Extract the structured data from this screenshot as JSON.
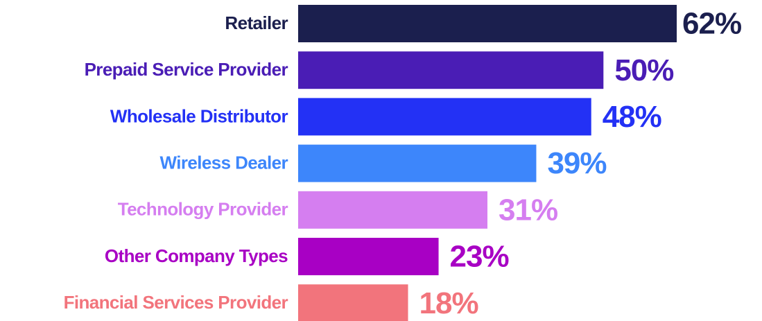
{
  "chart_data": {
    "type": "bar",
    "orientation": "horizontal",
    "categories": [
      "Retailer",
      "Prepaid Service Provider",
      "Wholesale Distributor",
      "Wireless Dealer",
      "Technology Provider",
      "Other Company Types",
      "Financial Services Provider"
    ],
    "values": [
      62,
      50,
      48,
      39,
      31,
      23,
      18
    ],
    "value_labels": [
      "62%",
      "50%",
      "48%",
      "39%",
      "31%",
      "23%",
      "18%"
    ],
    "colors": [
      "#1b1f4e",
      "#4a1db5",
      "#2331f5",
      "#3d86fb",
      "#d57ef0",
      "#a800c4",
      "#f2747c"
    ]
  }
}
